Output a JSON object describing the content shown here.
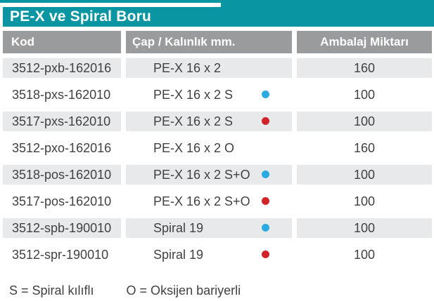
{
  "title": "PE-X ve Spiral Boru",
  "columns": [
    {
      "label": "Kod"
    },
    {
      "label": "Çap / Kalınlık mm."
    },
    {
      "label": "Ambalaj Miktarı"
    }
  ],
  "rows": [
    {
      "kod": "3512-pxb-162016",
      "cap": "PE-X 16 x 2",
      "dot": "none",
      "miktar": "160"
    },
    {
      "kod": "3518-pxs-162010",
      "cap": "PE-X 16 x 2 S",
      "dot": "blue",
      "miktar": "100"
    },
    {
      "kod": "3517-pxs-162010",
      "cap": "PE-X 16 x 2 S",
      "dot": "red",
      "miktar": "100"
    },
    {
      "kod": "3512-pxo-162016",
      "cap": "PE-X 16 x 2 O",
      "dot": "none",
      "miktar": "160"
    },
    {
      "kod": "3518-pos-162010",
      "cap": "PE-X 16 x 2 S+O",
      "dot": "blue",
      "miktar": "100"
    },
    {
      "kod": "3517-pos-162010",
      "cap": "PE-X 16 x 2 S+O",
      "dot": "red",
      "miktar": "100"
    },
    {
      "kod": "3512-spb-190010",
      "cap": "Spiral 19",
      "dot": "blue",
      "miktar": "100"
    },
    {
      "kod": "3512-spr-190010",
      "cap": "Spiral 19",
      "dot": "red",
      "miktar": "100"
    }
  ],
  "legend": {
    "s_label": "S = Spiral kılıflı",
    "o_label": "O = Oksijen bariyerli"
  },
  "colors": {
    "teal": "#0995A1",
    "header_gray": "#9A9B9D",
    "row_gray": "#E8E9EA",
    "dot_blue": "#29ABE2",
    "dot_red": "#D2232A",
    "text": "#414143"
  }
}
